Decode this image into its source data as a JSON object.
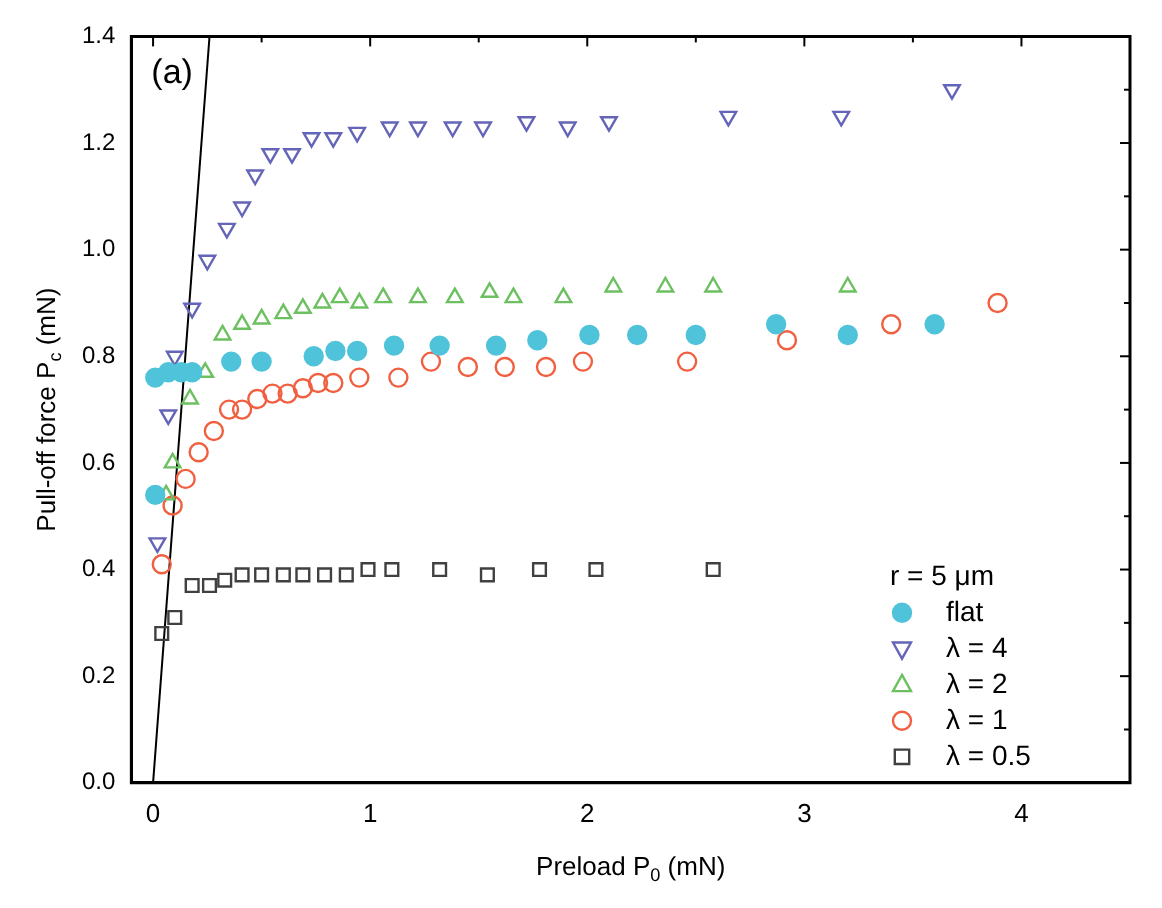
{
  "chart_data": {
    "type": "scatter",
    "xlabel": "Preload P$_{0}$ (mN)",
    "ylabel": "Pull-off force P$_{c}$ (mN)",
    "legend_title": "r = 5 μm",
    "legend": "bottom right",
    "annotations": [
      "(a)"
    ],
    "xlim": [
      -0.1,
      4.5
    ],
    "ylim": [
      0,
      1.4
    ],
    "xticks": [
      0,
      {
        "value": 0.5,
        "label": null
      },
      1,
      {
        "value": 1.5,
        "label": null
      },
      2,
      {
        "value": 2.5,
        "label": null
      },
      3,
      {
        "value": 3.5,
        "label": null
      },
      4
    ],
    "yticks": [
      {
        "value": 0,
        "label": "0.0"
      },
      {
        "value": 0.1,
        "label": null
      },
      {
        "value": 0.2,
        "label": "0.2"
      },
      {
        "value": 0.3,
        "label": null
      },
      {
        "value": 0.4,
        "label": "0.4"
      },
      {
        "value": 0.5,
        "label": null
      },
      {
        "value": 0.6,
        "label": "0.6"
      },
      {
        "value": 0.7,
        "label": null
      },
      {
        "value": 0.8,
        "label": "0.8"
      },
      {
        "value": 0.9,
        "label": null
      },
      {
        "value": 1.0,
        "label": "1.0"
      },
      {
        "value": 1.1,
        "label": null
      },
      {
        "value": 1.2,
        "label": "1.2"
      },
      {
        "value": 1.3,
        "label": null
      },
      {
        "value": 1.4,
        "label": "1.4"
      }
    ],
    "grid": false,
    "series": [
      {
        "name": "flat",
        "color": "#4fc3d9",
        "marker": "circle",
        "x": [
          0.01,
          0.01,
          0.07,
          0.13,
          0.18,
          0.36,
          0.5,
          0.74,
          0.84,
          0.94,
          1.11,
          1.32,
          1.58,
          1.77,
          2.01,
          2.23,
          2.5,
          2.87,
          3.2,
          3.6
        ],
        "values": [
          0.54,
          0.76,
          0.77,
          0.77,
          0.77,
          0.79,
          0.79,
          0.8,
          0.81,
          0.81,
          0.82,
          0.82,
          0.82,
          0.83,
          0.84,
          0.84,
          0.84,
          0.86,
          0.84,
          0.86
        ]
      },
      {
        "name": "λ = 4",
        "color": "#6464b8",
        "marker": "triangle-down-open",
        "x": [
          0.02,
          0.07,
          0.1,
          0.18,
          0.25,
          0.34,
          0.41,
          0.47,
          0.54,
          0.64,
          0.73,
          0.83,
          0.94,
          1.09,
          1.22,
          1.38,
          1.52,
          1.72,
          1.91,
          2.1,
          2.65,
          3.17,
          3.68
        ],
        "values": [
          0.45,
          0.69,
          0.8,
          0.89,
          0.98,
          1.04,
          1.08,
          1.14,
          1.18,
          1.18,
          1.21,
          1.21,
          1.22,
          1.23,
          1.23,
          1.23,
          1.23,
          1.24,
          1.23,
          1.24,
          1.25,
          1.25,
          1.3
        ]
      },
      {
        "name": "λ = 2",
        "color": "#6cc060",
        "marker": "triangle-open",
        "x": [
          0.06,
          0.09,
          0.17,
          0.24,
          0.32,
          0.41,
          0.5,
          0.6,
          0.69,
          0.78,
          0.86,
          0.95,
          1.06,
          1.22,
          1.39,
          1.55,
          1.66,
          1.89,
          2.12,
          2.36,
          2.58,
          3.2
        ],
        "values": [
          0.54,
          0.6,
          0.72,
          0.77,
          0.84,
          0.86,
          0.87,
          0.88,
          0.89,
          0.9,
          0.91,
          0.9,
          0.91,
          0.91,
          0.91,
          0.92,
          0.91,
          0.91,
          0.93,
          0.93,
          0.93,
          0.93
        ]
      },
      {
        "name": "λ = 1",
        "color": "#f06040",
        "marker": "circle-open",
        "x": [
          0.04,
          0.09,
          0.15,
          0.21,
          0.28,
          0.35,
          0.41,
          0.48,
          0.55,
          0.62,
          0.69,
          0.76,
          0.83,
          0.95,
          1.13,
          1.28,
          1.45,
          1.62,
          1.81,
          1.98,
          2.46,
          2.92,
          3.4,
          3.89
        ],
        "values": [
          0.41,
          0.52,
          0.57,
          0.62,
          0.66,
          0.7,
          0.7,
          0.72,
          0.73,
          0.73,
          0.74,
          0.75,
          0.75,
          0.76,
          0.76,
          0.79,
          0.78,
          0.78,
          0.78,
          0.79,
          0.79,
          0.83,
          0.86,
          0.9
        ]
      },
      {
        "name": "λ = 0.5",
        "color": "#404040",
        "marker": "square-open",
        "x": [
          0.04,
          0.1,
          0.18,
          0.26,
          0.33,
          0.41,
          0.5,
          0.6,
          0.69,
          0.79,
          0.89,
          0.99,
          1.1,
          1.32,
          1.54,
          1.78,
          2.04,
          2.58
        ],
        "values": [
          0.28,
          0.31,
          0.37,
          0.37,
          0.38,
          0.39,
          0.39,
          0.39,
          0.39,
          0.39,
          0.39,
          0.4,
          0.4,
          0.4,
          0.39,
          0.4,
          0.4,
          0.4
        ]
      },
      {
        "type": "line",
        "color": "#000000",
        "marker": "none",
        "x": [
          0,
          0.26
        ],
        "values": [
          0,
          1.4
        ]
      }
    ]
  }
}
